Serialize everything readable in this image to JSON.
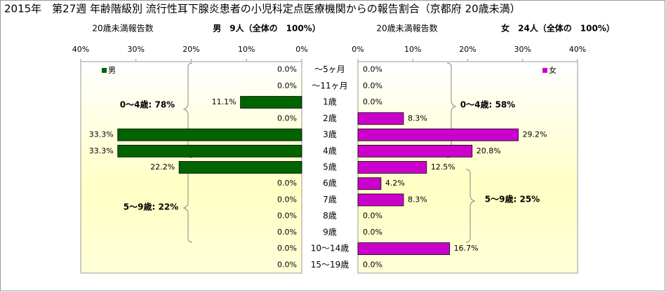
{
  "title": "2015年　第27週 年齢階級別 流行性耳下腺炎患者の小児科定点医療機関からの報告割合（京都府 20歳未満）",
  "chart_data": [
    {
      "type": "bar",
      "orientation": "horizontal",
      "x_reversed": true,
      "header_label": "20歳未満報告数",
      "count_label": "男　9人（全体の　100%）",
      "categories": [
        "～5ヶ月",
        "～11ヶ月",
        "1歳",
        "2歳",
        "3歳",
        "4歳",
        "5歳",
        "6歳",
        "7歳",
        "8歳",
        "9歳",
        "10～14歳",
        "15～19歳"
      ],
      "series": [
        {
          "name": "男",
          "color": "#006400",
          "values": [
            0,
            0,
            11.1,
            0,
            33.3,
            33.3,
            22.2,
            0,
            0,
            0,
            0,
            0,
            0
          ],
          "value_labels": [
            "0.0%",
            "0.0%",
            "11.1%",
            "0.0%",
            "33.3%",
            "33.3%",
            "22.2%",
            "0.0%",
            "0.0%",
            "0.0%",
            "0.0%",
            "0.0%",
            "0.0%"
          ]
        }
      ],
      "xlim": [
        0,
        40
      ],
      "xticks": [
        {
          "value": 40,
          "label": "40%"
        },
        {
          "value": 30,
          "label": "30%"
        },
        {
          "value": 20,
          "label": "20%"
        },
        {
          "value": 10,
          "label": "10%"
        },
        {
          "value": 0,
          "label": "0%"
        }
      ],
      "legend": "top-left",
      "grid": false,
      "annotations": [
        "0～4歳: 78%",
        "5～9歳: 22%"
      ]
    },
    {
      "type": "bar",
      "orientation": "horizontal",
      "x_reversed": false,
      "header_label": "20歳未満報告数",
      "count_label": "女　24人（全体の　100%）",
      "series": [
        {
          "name": "女",
          "color": "#cc00cc",
          "values": [
            0,
            0,
            0,
            8.3,
            29.2,
            20.8,
            12.5,
            4.2,
            8.3,
            0,
            0,
            16.7,
            0
          ],
          "value_labels": [
            "0.0%",
            "0.0%",
            "0.0%",
            "8.3%",
            "29.2%",
            "20.8%",
            "12.5%",
            "4.2%",
            "8.3%",
            "0.0%",
            "0.0%",
            "16.7%",
            "0.0%"
          ]
        }
      ],
      "xlim": [
        0,
        40
      ],
      "xticks": [
        {
          "value": 0,
          "label": "0%"
        },
        {
          "value": 10,
          "label": "10%"
        },
        {
          "value": 20,
          "label": "20%"
        },
        {
          "value": 30,
          "label": "30%"
        },
        {
          "value": 40,
          "label": "40%"
        }
      ],
      "legend": "top-right",
      "grid": false,
      "annotations": [
        "0～4歳: 58%",
        "5～9歳: 25%"
      ]
    }
  ]
}
